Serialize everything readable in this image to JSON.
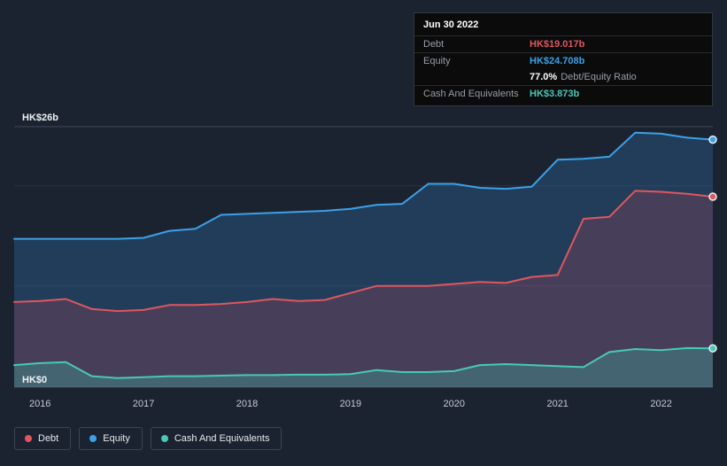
{
  "colors": {
    "debt": "#e0565f",
    "equity": "#3ba1e8",
    "cash": "#47c9b6",
    "background": "#1c2330"
  },
  "tooltip": {
    "date": "Jun 30 2022",
    "debt_label": "Debt",
    "debt_value": "HK$19.017b",
    "equity_label": "Equity",
    "equity_value": "HK$24.708b",
    "ratio_percent": "77.0%",
    "ratio_label": "Debt/Equity Ratio",
    "cash_label": "Cash And Equivalents",
    "cash_value": "HK$3.873b"
  },
  "legend": {
    "items": [
      {
        "label": "Debt",
        "color": "#e0565f"
      },
      {
        "label": "Equity",
        "color": "#3ba1e8"
      },
      {
        "label": "Cash And Equivalents",
        "color": "#47c9b6"
      }
    ]
  },
  "chart_data": {
    "type": "area",
    "title": "Debt, Equity and Cash history (HK$ billions)",
    "x": [
      2015.75,
      2016.0,
      2016.25,
      2016.5,
      2016.75,
      2017.0,
      2017.25,
      2017.5,
      2017.75,
      2018.0,
      2018.25,
      2018.5,
      2018.75,
      2019.0,
      2019.25,
      2019.5,
      2019.75,
      2020.0,
      2020.25,
      2020.5,
      2020.75,
      2021.0,
      2021.25,
      2021.5,
      2021.75,
      2022.0,
      2022.25,
      2022.5
    ],
    "series": [
      {
        "name": "Debt",
        "color": "#e0565f",
        "fill": "rgba(224,76,90,0.20)",
        "values": [
          8.5,
          8.6,
          8.8,
          7.8,
          7.6,
          7.7,
          8.2,
          8.2,
          8.3,
          8.5,
          8.8,
          8.6,
          8.7,
          9.4,
          10.1,
          10.1,
          10.1,
          10.3,
          10.5,
          10.4,
          11.0,
          11.2,
          16.8,
          17.0,
          19.6,
          19.5,
          19.3,
          19.017
        ]
      },
      {
        "name": "Equity",
        "color": "#3ba1e8",
        "fill": "rgba(49,138,214,0.25)",
        "values": [
          14.8,
          14.8,
          14.8,
          14.8,
          14.8,
          14.9,
          15.6,
          15.8,
          17.2,
          17.3,
          17.4,
          17.5,
          17.6,
          17.8,
          18.2,
          18.3,
          20.3,
          20.3,
          19.9,
          19.8,
          20.0,
          22.7,
          22.8,
          23.0,
          25.4,
          25.3,
          24.9,
          24.708
        ]
      },
      {
        "name": "Cash And Equivalents",
        "color": "#47c9b6",
        "fill": "rgba(64,196,176,0.28)",
        "values": [
          2.2,
          2.4,
          2.5,
          1.1,
          0.9,
          1.0,
          1.1,
          1.1,
          1.15,
          1.2,
          1.2,
          1.25,
          1.25,
          1.3,
          1.7,
          1.5,
          1.5,
          1.6,
          2.2,
          2.3,
          2.2,
          2.1,
          2.0,
          3.5,
          3.8,
          3.7,
          3.9,
          3.873
        ]
      }
    ],
    "xlim": [
      2015.75,
      2022.5
    ],
    "ylim": [
      0,
      26
    ],
    "gridlines": [
      26,
      20.1,
      10.1,
      0
    ],
    "x_ticks": [
      2016,
      2017,
      2018,
      2019,
      2020,
      2021,
      2022
    ],
    "y_axis_top_label": "HK$26b",
    "y_axis_bottom_label": "HK$0",
    "xlabel": "",
    "ylabel": "",
    "grid": "horizontal",
    "legend_position": "bottom-left"
  }
}
